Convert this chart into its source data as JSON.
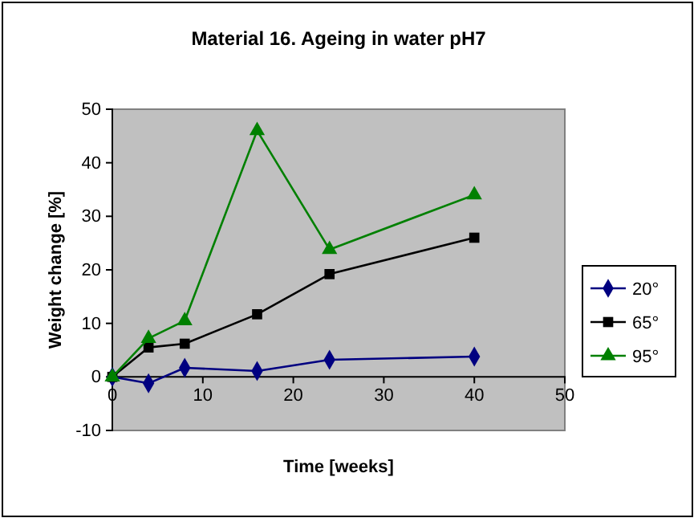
{
  "chart_data": {
    "type": "line",
    "title": "Material 16. Ageing in water pH7",
    "xlabel": "Time [weeks]",
    "ylabel": "Weight change [%]",
    "xlim": [
      0,
      50
    ],
    "xticks": [
      0,
      10,
      20,
      30,
      40,
      50
    ],
    "ylim": [
      -10,
      50
    ],
    "yticks": [
      -10,
      0,
      10,
      20,
      30,
      40,
      50
    ],
    "grid": false,
    "legend": "right",
    "series": [
      {
        "name": "20°",
        "color": "#000080",
        "marker": "diamond",
        "x": [
          0,
          4,
          8,
          16,
          24,
          40
        ],
        "values": [
          0,
          -1.2,
          1.7,
          1.1,
          3.2,
          3.8
        ]
      },
      {
        "name": "65°",
        "color": "#000000",
        "marker": "square",
        "x": [
          0,
          4,
          8,
          16,
          24,
          40
        ],
        "values": [
          0,
          5.5,
          6.2,
          11.7,
          19.2,
          26
        ]
      },
      {
        "name": "95°",
        "color": "#008000",
        "marker": "triangle",
        "x": [
          0,
          4,
          8,
          16,
          24,
          40
        ],
        "values": [
          0,
          7.2,
          10.5,
          46,
          23.8,
          34
        ]
      }
    ]
  }
}
